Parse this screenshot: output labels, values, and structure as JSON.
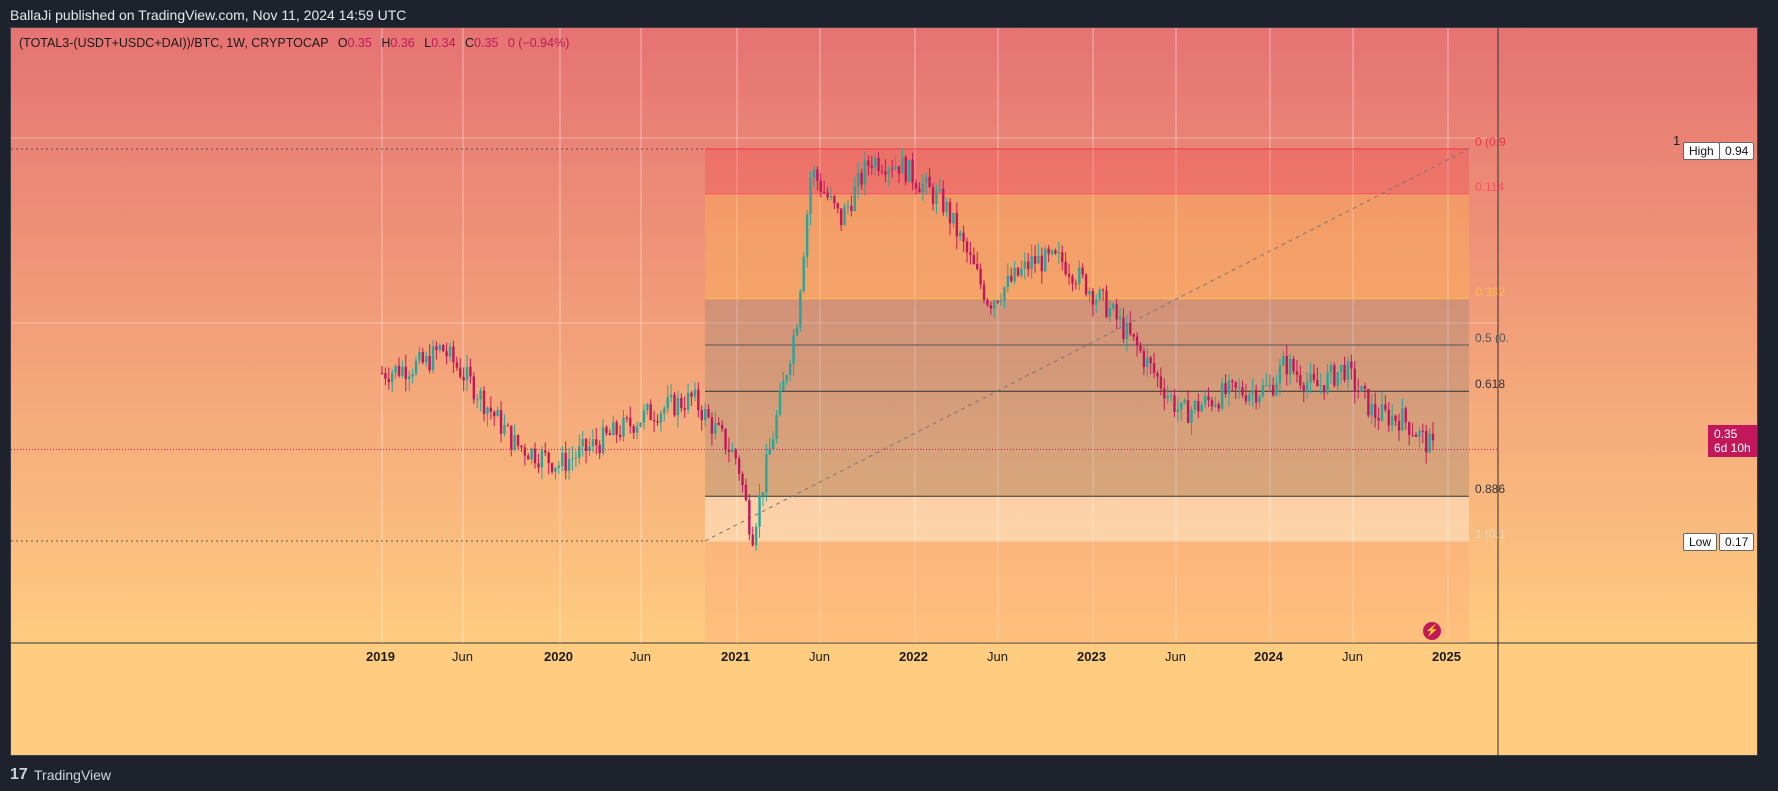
{
  "header": {
    "publish_info": "BallaJi published on TradingView.com, Nov 11, 2024 14:59 UTC"
  },
  "footer": {
    "logo": "17",
    "brand": "TradingView"
  },
  "symbol": {
    "name": "(TOTAL3-(USDT+USDC+DAI))/BTC, 1W, CRYPTOCAP",
    "open_k": "O",
    "open": "0.35",
    "high_k": "H",
    "high": "0.36",
    "low_k": "L",
    "low": "0.34",
    "close_k": "C",
    "close": "0.35",
    "change": "0 (−0.94%)"
  },
  "price_scale": {
    "top_value": "1",
    "high_tag": "High",
    "high_value": "0.94",
    "low_tag": "Low",
    "low_value": "0.17",
    "current_price": "0.35",
    "countdown": "6d 10h"
  },
  "fib_levels": [
    {
      "label": "0 (0.9",
      "level": 0,
      "color": "#f23645"
    },
    {
      "label": "0.114",
      "level": 0.114,
      "color": "#f7525f"
    },
    {
      "label": "0.382",
      "level": 0.382,
      "color": "#ffb74d"
    },
    {
      "label": "0.5 (0.",
      "level": 0.5,
      "color": "#555555"
    },
    {
      "label": "0.618",
      "level": 0.618,
      "color": "#333333"
    },
    {
      "label": "0.886",
      "level": 0.886,
      "color": "#333333"
    },
    {
      "label": "1 (0.1",
      "level": 1,
      "color": "#f0d6b0"
    }
  ],
  "time_axis": [
    "2019",
    "Jun",
    "2020",
    "Jun",
    "2021",
    "Jun",
    "2022",
    "Jun",
    "2023",
    "Jun",
    "2024",
    "Jun",
    "2025"
  ],
  "colors": {
    "up": "#26a69a",
    "down": "#c2185b",
    "bg_top": "#e57373",
    "bg_bottom": "#ffcc80"
  },
  "chart_data": {
    "type": "line",
    "title": "(TOTAL3-(USDT+USDC+DAI))/BTC",
    "timeframe": "1W",
    "x": [
      "2018-12",
      "2019-03",
      "2019-04",
      "2019-06",
      "2019-09",
      "2019-12",
      "2020-03",
      "2020-06",
      "2020-09",
      "2020-12",
      "2021-01",
      "2021-04",
      "2021-05",
      "2021-07",
      "2021-09",
      "2021-11",
      "2022-02",
      "2022-05",
      "2022-08",
      "2022-10",
      "2023-01",
      "2023-03",
      "2023-06",
      "2023-09",
      "2023-12",
      "2024-01",
      "2024-03",
      "2024-05",
      "2024-07",
      "2024-09",
      "2024-11"
    ],
    "series": [
      {
        "values": [
          0.5,
          0.52,
          0.55,
          0.48,
          0.36,
          0.32,
          0.37,
          0.42,
          0.45,
          0.33,
          0.18,
          0.6,
          0.9,
          0.8,
          0.92,
          0.91,
          0.83,
          0.64,
          0.72,
          0.72,
          0.63,
          0.55,
          0.42,
          0.46,
          0.47,
          0.52,
          0.47,
          0.51,
          0.42,
          0.41,
          0.35
        ]
      }
    ],
    "ylim": [
      0.0,
      1.0
    ],
    "fib_high": 0.94,
    "fib_low": 0.17
  }
}
